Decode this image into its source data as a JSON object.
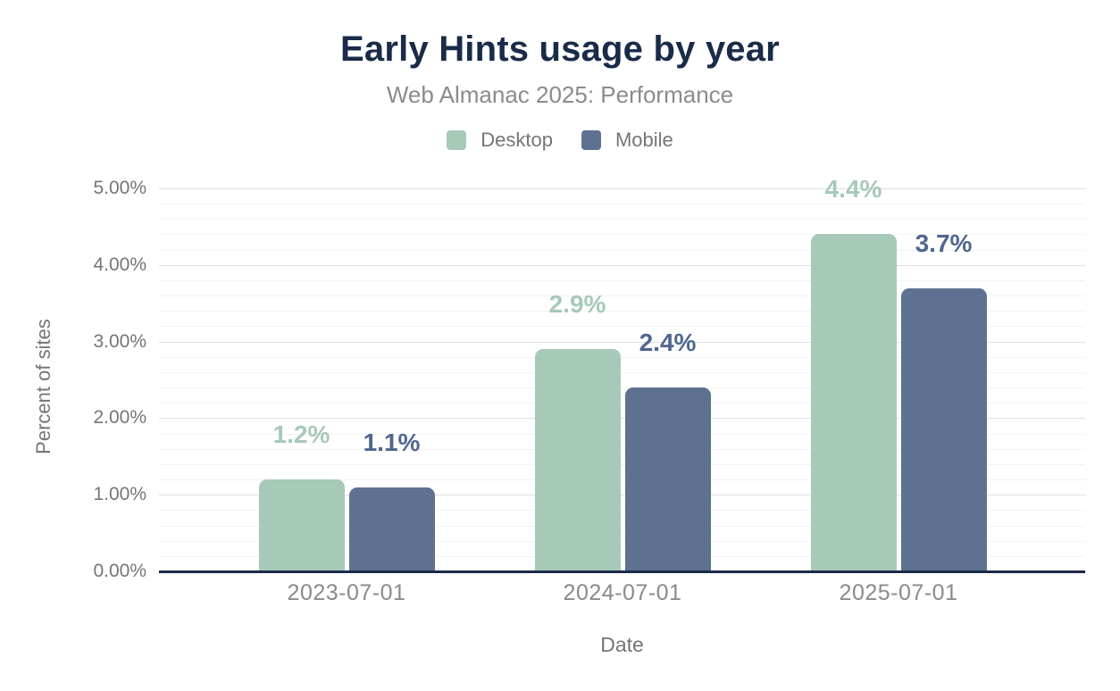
{
  "chart_data": {
    "type": "bar",
    "title": "Early Hints usage by year",
    "subtitle": "Web Almanac 2025: Performance",
    "xlabel": "Date",
    "ylabel": "Percent of sites",
    "categories": [
      "2023-07-01",
      "2024-07-01",
      "2025-07-01"
    ],
    "series": [
      {
        "name": "Desktop",
        "color": "#a7c9b8",
        "label_color": "#a7c9b8",
        "values": [
          1.2,
          2.9,
          4.4
        ],
        "labels": [
          "1.2%",
          "2.9%",
          "4.4%"
        ]
      },
      {
        "name": "Mobile",
        "color": "#5e7190",
        "label_color": "#4f6690",
        "values": [
          1.1,
          2.4,
          3.7
        ],
        "labels": [
          "1.1%",
          "2.4%",
          "3.7%"
        ]
      }
    ],
    "ylim": [
      0,
      5
    ],
    "y_tick_values": [
      0,
      1,
      2,
      3,
      4,
      5
    ],
    "y_tick_labels": [
      "0.00%",
      "1.00%",
      "2.00%",
      "3.00%",
      "4.00%",
      "5.00%"
    ],
    "minor_grid_step": 0.2,
    "grid": "horizontal",
    "legend_position": "top"
  },
  "colors": {
    "background": "#ffffff",
    "title_text": "#1a2b49",
    "subtitle_text": "#8b8b8b",
    "axis_text": "#757575",
    "tick_text": "#8a8a8a",
    "axis_line": "#1b2a4a",
    "grid_major": "#e0e0e0",
    "grid_minor": "#f3f3f3",
    "desktop_accent": "#a7c9b8",
    "mobile_accent": "#5e7190"
  }
}
